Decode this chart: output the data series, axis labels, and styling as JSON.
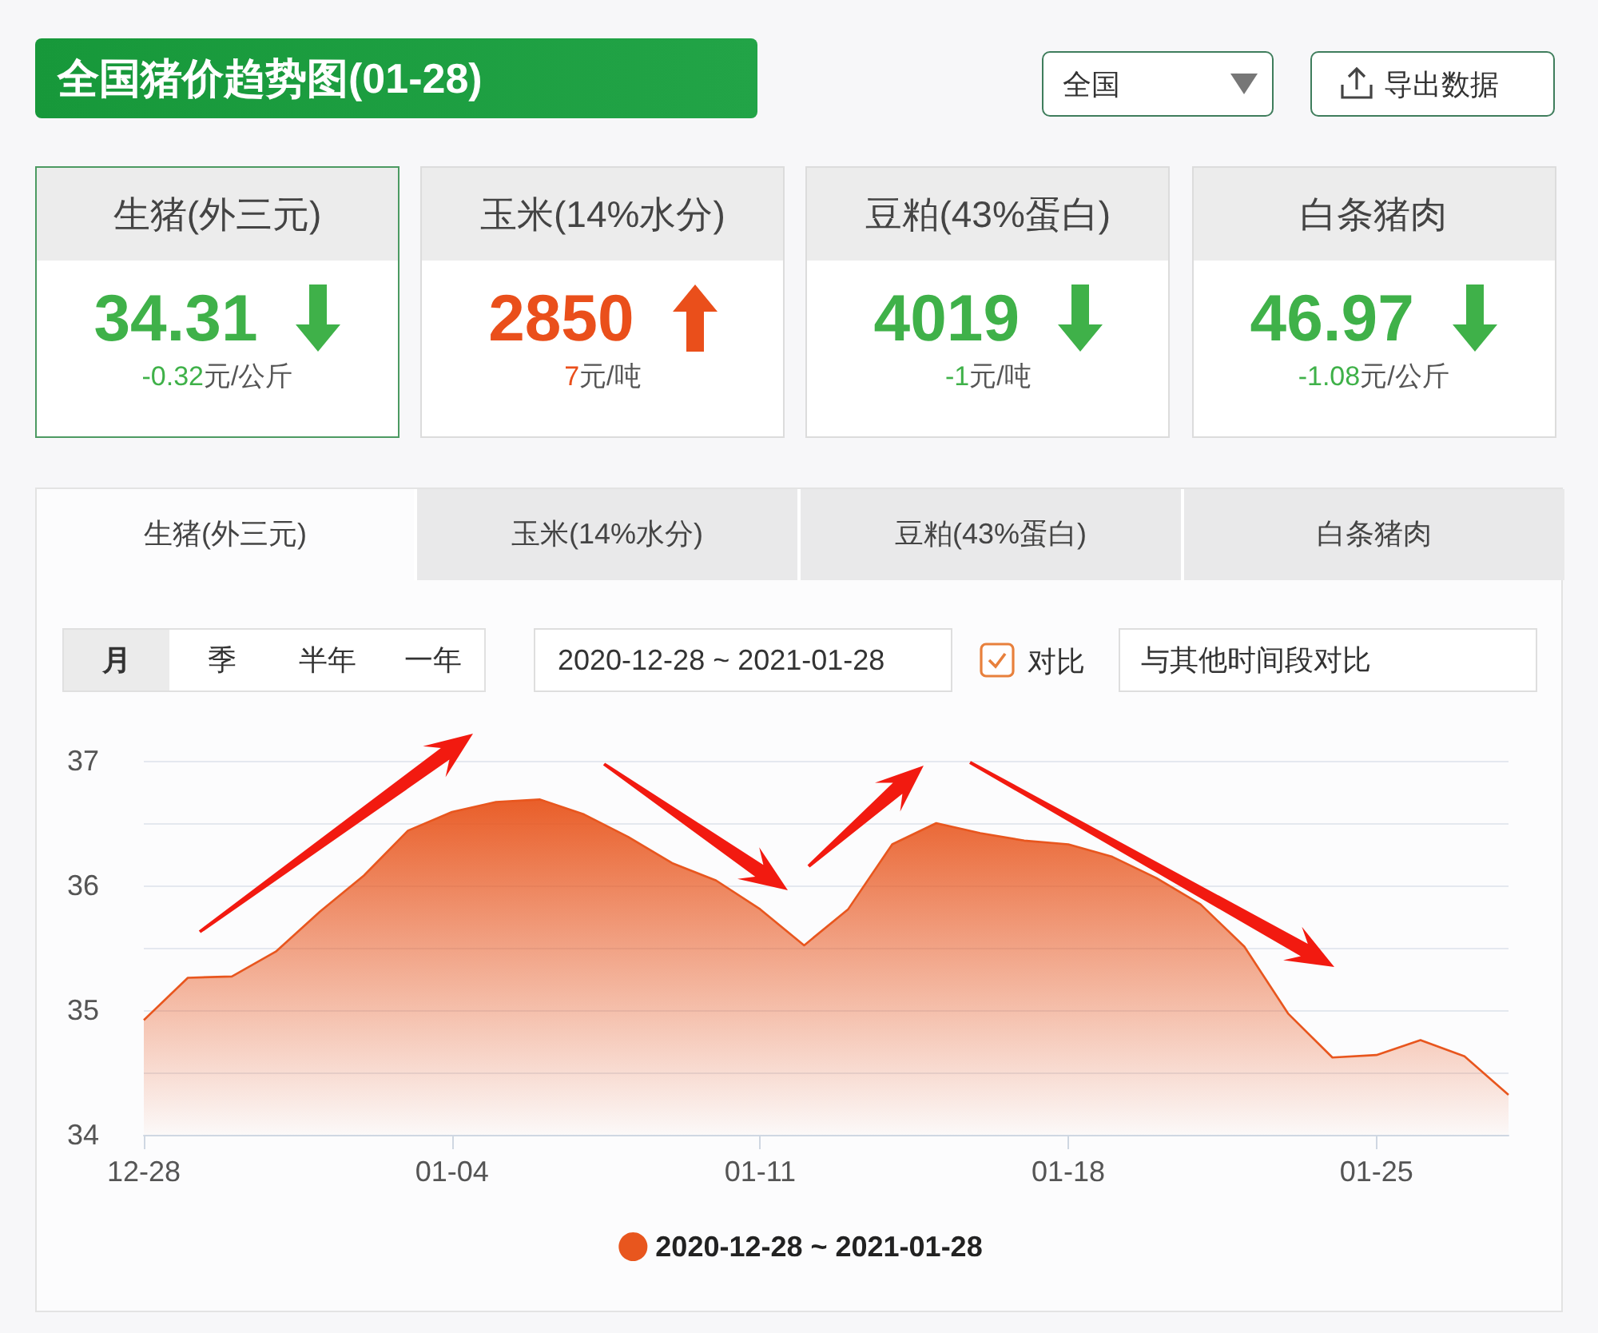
{
  "chart_data": [
    {
      "type": "other",
      "title": "全国猪价趋势图(01-28)",
      "categories": [
        "生猪(外三元)",
        "玉米(14%水分)",
        "豆粕(43%蛋白)",
        "白条猪肉"
      ],
      "data_labels": true,
      "series": [
        {
          "values": [
            34.31,
            2850,
            4019,
            46.97
          ]
        },
        {
          "values": [
            -0.32,
            7,
            -1,
            -1.08
          ],
          "value_labels": [
            "-0.32元/公斤",
            "7元/吨",
            "-1元/吨",
            "-1.08元/公斤"
          ]
        }
      ],
      "annotations": [
        "全国",
        "导出数据"
      ]
    },
    {
      "type": "area",
      "x": [
        "2020-12-28",
        "2020-12-29",
        "2020-12-30",
        "2020-12-31",
        "2021-01-01",
        "2021-01-02",
        "2021-01-03",
        "2021-01-04",
        "2021-01-05",
        "2021-01-06",
        "2021-01-07",
        "2021-01-08",
        "2021-01-09",
        "2021-01-10",
        "2021-01-11",
        "2021-01-12",
        "2021-01-13",
        "2021-01-14",
        "2021-01-15",
        "2021-01-16",
        "2021-01-17",
        "2021-01-18",
        "2021-01-19",
        "2021-01-20",
        "2021-01-21",
        "2021-01-22",
        "2021-01-23",
        "2021-01-24",
        "2021-01-25",
        "2021-01-26",
        "2021-01-27",
        "2021-01-28"
      ],
      "series": [
        {
          "name": "2020-12-28 ~ 2021-01-28",
          "color": "#e8561e",
          "values": [
            34.92,
            35.26,
            35.27,
            35.47,
            35.79,
            36.08,
            36.44,
            36.59,
            36.67,
            36.69,
            36.57,
            36.39,
            36.18,
            36.04,
            35.81,
            35.52,
            35.81,
            36.33,
            36.5,
            36.42,
            36.36,
            36.33,
            36.23,
            36.06,
            35.85,
            35.51,
            34.97,
            34.62,
            34.64,
            34.76,
            34.63,
            34.32
          ]
        }
      ],
      "xlim": [
        "2020-12-28",
        "2021-01-28"
      ],
      "xticks": [
        {
          "value": "2020-12-28",
          "label": "12-28"
        },
        {
          "value": "2021-01-04",
          "label": "01-04"
        },
        {
          "value": "2021-01-11",
          "label": "01-11"
        },
        {
          "value": "2021-01-18",
          "label": "01-18"
        },
        {
          "value": "2021-01-25",
          "label": "01-25"
        }
      ],
      "ylim": [
        34,
        37
      ],
      "yticks": [
        34,
        35,
        36,
        37
      ],
      "grid": "y",
      "legend": "bottom",
      "annotations": [
        "月",
        "季",
        "半年",
        "一年",
        "对比",
        "与其他时间段对比"
      ]
    }
  ]
}
